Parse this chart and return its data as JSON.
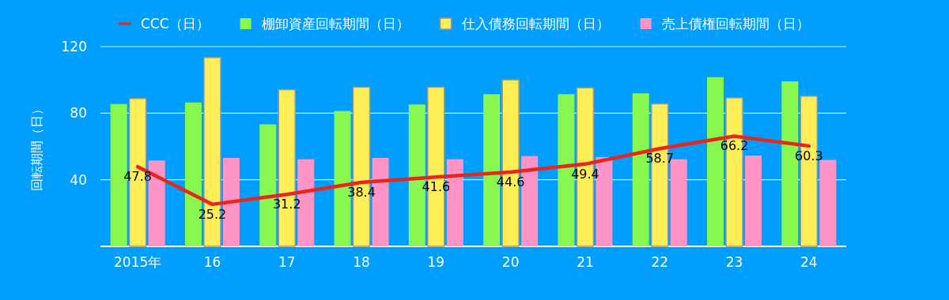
{
  "chart_data": {
    "type": "bar",
    "ylabel": "回転期間（日）",
    "categories": [
      "2015年",
      "16",
      "17",
      "18",
      "19",
      "20",
      "21",
      "22",
      "23",
      "24"
    ],
    "series": [
      {
        "name": "CCC（日）",
        "type": "line",
        "color": "#e8261a",
        "data_labels": true,
        "values": [
          47.8,
          25.2,
          31.2,
          38.4,
          41.6,
          44.6,
          49.4,
          58.7,
          66.2,
          60.3
        ]
      },
      {
        "name": "棚卸資産回転期間（日）",
        "color": "#88f74f",
        "values": [
          85.5,
          86.4,
          73.3,
          81.3,
          85.2,
          91.4,
          91.4,
          91.9,
          101.6,
          99.1
        ]
      },
      {
        "name": "仕入債務回転期間（日）",
        "color": "#ffee58",
        "values": [
          88.8,
          113.4,
          94.1,
          95.6,
          95.6,
          100,
          95.2,
          85.6,
          89.2,
          90.2
        ]
      },
      {
        "name": "売上債権回転期間（日）",
        "color": "#ff94c6",
        "values": [
          51.6,
          53.1,
          52.3,
          53.1,
          52.3,
          54.2,
          53.6,
          52.3,
          54.5,
          51.9
        ]
      }
    ],
    "ylim": [
      0,
      120
    ],
    "yticks": [
      40,
      80,
      120
    ],
    "grid": "y",
    "legend": "top"
  }
}
